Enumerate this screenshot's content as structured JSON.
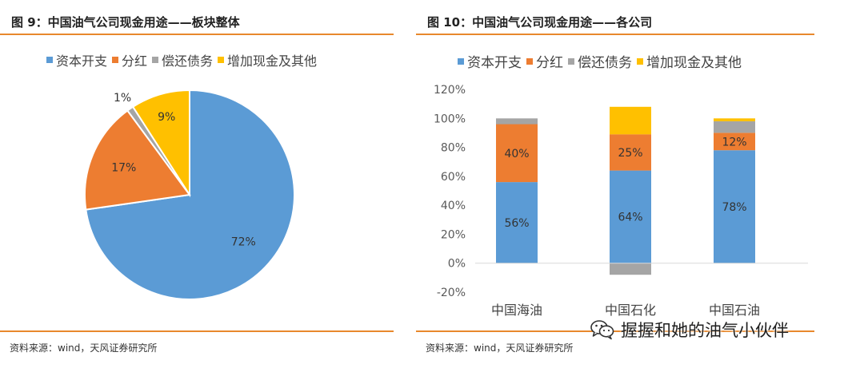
{
  "left_panel": {
    "title": "图 9：中国油气公司现金用途——板块整体",
    "source": "资料来源：wind，天风证券研究所"
  },
  "right_panel": {
    "title": "图 10：中国油气公司现金用途——各公司",
    "source": "资料来源：wind，天风证券研究所"
  },
  "watermark": {
    "text": "握握和她的油气小伙伴",
    "icon": "wechat-icon"
  },
  "colors": {
    "capex": "#5b9bd5",
    "dividend": "#ed7d31",
    "debt": "#a5a5a5",
    "cash_other": "#ffc000",
    "accent_rule": "#e8882c"
  },
  "chart_data": [
    {
      "type": "pie",
      "legend_position": "top",
      "labels": [
        "资本开支",
        "分红",
        "偿还债务",
        "增加现金及其他"
      ],
      "values": [
        72,
        17,
        1,
        9
      ],
      "data_labels": [
        "72%",
        "17%",
        "1%",
        "9%"
      ],
      "colors": [
        "#5b9bd5",
        "#ed7d31",
        "#a5a5a5",
        "#ffc000"
      ]
    },
    {
      "type": "bar",
      "stacked": true,
      "legend_position": "top",
      "grid": false,
      "categories": [
        "中国海油",
        "中国石化",
        "中国石油"
      ],
      "ylim": [
        -20,
        120
      ],
      "yticks": [
        -20,
        0,
        20,
        40,
        60,
        80,
        100,
        120
      ],
      "ytick_labels": [
        "-20%",
        "0%",
        "20%",
        "40%",
        "60%",
        "80%",
        "100%",
        "120%"
      ],
      "series": [
        {
          "name": "资本开支",
          "color": "#5b9bd5",
          "values": [
            56,
            64,
            78
          ],
          "labels": [
            "56%",
            "64%",
            "78%"
          ]
        },
        {
          "name": "分红",
          "color": "#ed7d31",
          "values": [
            40,
            25,
            12
          ],
          "labels": [
            "40%",
            "25%",
            "12%"
          ]
        },
        {
          "name": "偿还债务",
          "color": "#a5a5a5",
          "values": [
            4,
            -8,
            8
          ],
          "labels": [
            "",
            "",
            ""
          ]
        },
        {
          "name": "增加现金及其他",
          "color": "#ffc000",
          "values": [
            0,
            19,
            2
          ],
          "labels": [
            "",
            "",
            ""
          ]
        }
      ]
    }
  ]
}
